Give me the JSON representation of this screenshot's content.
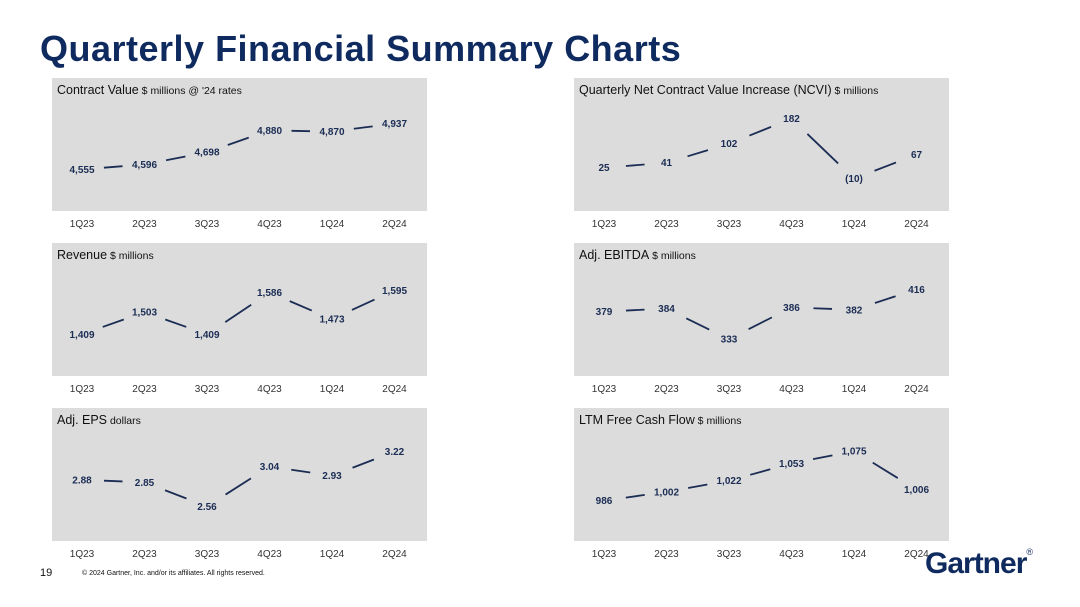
{
  "slide": {
    "title": "Quarterly Financial Summary Charts",
    "page_number": "19",
    "copyright": "© 2024 Gartner, Inc. and/or its affiliates. All rights reserved.",
    "logo_text": "Gartner",
    "logo_mark": "®"
  },
  "colors": {
    "title": "#0e2a5e",
    "line": "#1b2d54",
    "panel_bg": "#dcdcdc"
  },
  "chart_data": [
    {
      "type": "line",
      "title": "Contract Value",
      "unit": "$ millions @ '24 rates",
      "categories": [
        "1Q23",
        "2Q23",
        "3Q23",
        "4Q23",
        "1Q24",
        "2Q24"
      ],
      "values": [
        4555,
        4596,
        4698,
        4880,
        4870,
        4937
      ],
      "labels": [
        "4,555",
        "4,596",
        "4,698",
        "4,880",
        "4,870",
        "4,937"
      ],
      "ylim": [
        4400,
        5050
      ],
      "grid": false
    },
    {
      "type": "line",
      "title": "Quarterly Net Contract Value Increase (NCVI)",
      "unit": "$ millions",
      "categories": [
        "1Q23",
        "2Q23",
        "3Q23",
        "4Q23",
        "1Q24",
        "2Q24"
      ],
      "values": [
        25,
        41,
        102,
        182,
        -10,
        67
      ],
      "labels": [
        "25",
        "41",
        "102",
        "182",
        "(10)",
        "67"
      ],
      "ylim": [
        -40,
        210
      ],
      "grid": false
    },
    {
      "type": "line",
      "title": "Revenue",
      "unit": "$ millions",
      "categories": [
        "1Q23",
        "2Q23",
        "3Q23",
        "4Q23",
        "1Q24",
        "2Q24"
      ],
      "values": [
        1409,
        1503,
        1409,
        1586,
        1473,
        1595
      ],
      "labels": [
        "1,409",
        "1,503",
        "1,409",
        "1,586",
        "1,473",
        "1,595"
      ],
      "ylim": [
        1330,
        1660
      ],
      "grid": false
    },
    {
      "type": "line",
      "title": "Adj. EBITDA",
      "unit": "$ millions",
      "categories": [
        "1Q23",
        "2Q23",
        "3Q23",
        "4Q23",
        "1Q24",
        "2Q24"
      ],
      "values": [
        379,
        384,
        333,
        386,
        382,
        416
      ],
      "labels": [
        "379",
        "384",
        "333",
        "386",
        "382",
        "416"
      ],
      "ylim": [
        310,
        440
      ],
      "grid": false
    },
    {
      "type": "line",
      "title": "Adj. EPS",
      "unit": "dollars",
      "categories": [
        "1Q23",
        "2Q23",
        "3Q23",
        "4Q23",
        "1Q24",
        "2Q24"
      ],
      "values": [
        2.88,
        2.85,
        2.56,
        3.04,
        2.93,
        3.22
      ],
      "labels": [
        "2.88",
        "2.85",
        "2.56",
        "3.04",
        "2.93",
        "3.22"
      ],
      "ylim": [
        2.42,
        3.36
      ],
      "grid": false
    },
    {
      "type": "line",
      "title": "LTM Free Cash Flow",
      "unit": "$ millions",
      "categories": [
        "1Q23",
        "2Q23",
        "3Q23",
        "4Q23",
        "1Q24",
        "2Q24"
      ],
      "values": [
        986,
        1002,
        1022,
        1053,
        1075,
        1006
      ],
      "labels": [
        "986",
        "1,002",
        "1,022",
        "1,053",
        "1,075",
        "1,006"
      ],
      "ylim": [
        955,
        1095
      ],
      "grid": false
    }
  ]
}
